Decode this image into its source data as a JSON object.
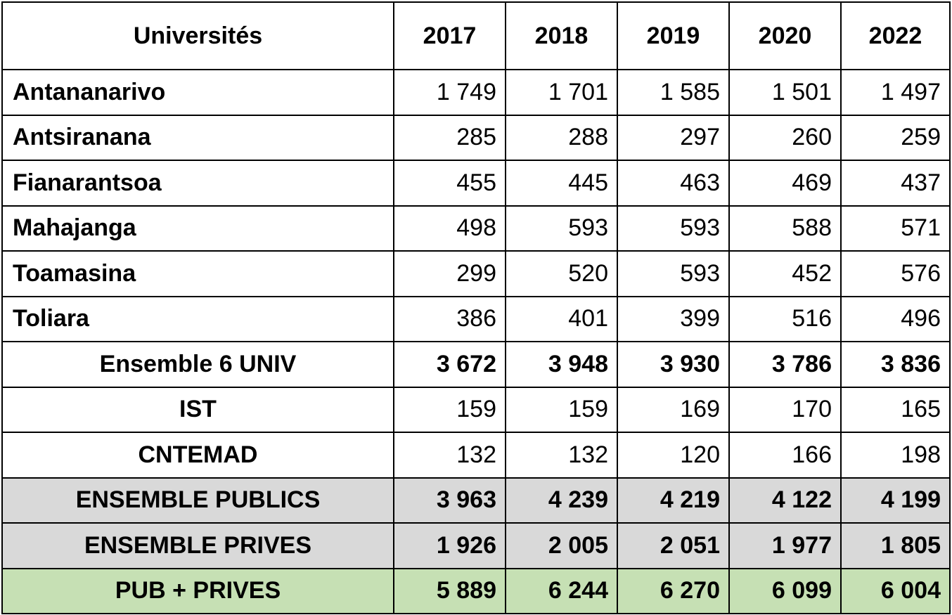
{
  "table": {
    "header": [
      "Universités",
      "2017",
      "2018",
      "2019",
      "2020",
      "2022"
    ],
    "rows": [
      {
        "label": "Antananarivo",
        "values": [
          "1 749",
          "1 701",
          "1 585",
          "1 501",
          "1 497"
        ]
      },
      {
        "label": "Antsiranana",
        "values": [
          "285",
          "288",
          "297",
          "260",
          "259"
        ]
      },
      {
        "label": "Fianarantsoa",
        "values": [
          "455",
          "445",
          "463",
          "469",
          "437"
        ]
      },
      {
        "label": "Mahajanga",
        "values": [
          "498",
          "593",
          "593",
          "588",
          "571"
        ]
      },
      {
        "label": "Toamasina",
        "values": [
          "299",
          "520",
          "593",
          "452",
          "576"
        ]
      },
      {
        "label": "Toliara",
        "values": [
          "386",
          "401",
          "399",
          "516",
          "496"
        ]
      },
      {
        "label": "Ensemble 6 UNIV",
        "values": [
          "3 672",
          "3 948",
          "3 930",
          "3 786",
          "3 836"
        ]
      },
      {
        "label": "IST",
        "values": [
          "159",
          "159",
          "169",
          "170",
          "165"
        ]
      },
      {
        "label": "CNTEMAD",
        "values": [
          "132",
          "132",
          "120",
          "166",
          "198"
        ]
      },
      {
        "label": "ENSEMBLE PUBLICS",
        "values": [
          "3 963",
          "4 239",
          "4 219",
          "4 122",
          "4 199"
        ]
      },
      {
        "label": "ENSEMBLE PRIVES",
        "values": [
          "1 926",
          "2 005",
          "2 051",
          "1 977",
          "1 805"
        ]
      },
      {
        "label": "PUB + PRIVES",
        "values": [
          "5 889",
          "6 244",
          "6 270",
          "6 099",
          "6 004"
        ]
      }
    ]
  },
  "colors": {
    "subtotal_row_bg": "#d9d9d9",
    "grand_total_row_bg": "#c6e0b4",
    "border": "#000000"
  }
}
